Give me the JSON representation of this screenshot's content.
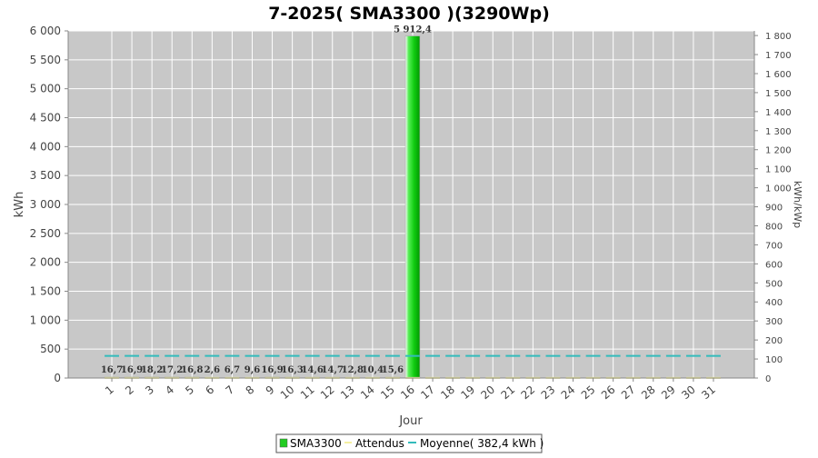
{
  "chart_data": {
    "type": "bar",
    "title": "7-2025( SMA3300 )(3290Wp)",
    "xlabel": "Jour",
    "ylabel": "kWh",
    "y2label": "kWh/kWp",
    "ylim": [
      0,
      6000
    ],
    "y2lim": [
      0,
      1824.4
    ],
    "yticks": [
      0,
      500,
      1000,
      1500,
      2000,
      2500,
      3000,
      3500,
      4000,
      4500,
      5000,
      5500,
      6000
    ],
    "ytick_labels": [
      "0",
      "500",
      "1 000",
      "1 500",
      "2 000",
      "2 500",
      "3 000",
      "3 500",
      "4 000",
      "4 500",
      "5 000",
      "5 500",
      "6 000"
    ],
    "y2ticks": [
      0,
      100,
      200,
      300,
      400,
      500,
      600,
      700,
      800,
      900,
      1000,
      1100,
      1200,
      1300,
      1400,
      1500,
      1600,
      1700,
      1800
    ],
    "y2tick_labels": [
      "0",
      "100",
      "200",
      "300",
      "400",
      "500",
      "600",
      "700",
      "800",
      "900",
      "1 000",
      "1 100",
      "1 200",
      "1 300",
      "1 400",
      "1 500",
      "1 600",
      "1 700",
      "1 800"
    ],
    "categories": [
      "1",
      "2",
      "3",
      "4",
      "5",
      "6",
      "7",
      "8",
      "9",
      "10",
      "11",
      "12",
      "13",
      "14",
      "15",
      "16",
      "17",
      "18",
      "19",
      "20",
      "21",
      "22",
      "23",
      "24",
      "25",
      "26",
      "27",
      "28",
      "29",
      "30",
      "31"
    ],
    "grid": true,
    "legend_position": "bottom",
    "series": [
      {
        "name": "SMA3300",
        "type": "bar",
        "color": "#22cc22",
        "values": [
          16.7,
          16.9,
          18.2,
          17.2,
          16.8,
          2.6,
          6.7,
          9.6,
          16.9,
          16.3,
          14.6,
          14.7,
          12.8,
          10.4,
          15.6,
          5912.4,
          null,
          null,
          null,
          null,
          null,
          null,
          null,
          null,
          null,
          null,
          null,
          null,
          null,
          null,
          null
        ],
        "labels": [
          "16,7",
          "16,9",
          "18,2",
          "17,2",
          "16,8",
          "2,6",
          "6,7",
          "9,6",
          "16,9",
          "16,3",
          "14,6",
          "14,7",
          "12,8",
          "10,4",
          "15,6",
          "5 912,4",
          "",
          "",
          "",
          "",
          "",
          "",
          "",
          "",
          "",
          "",
          "",
          "",
          "",
          "",
          ""
        ]
      },
      {
        "name": "Attendus",
        "type": "line",
        "color": "#f5f0a0",
        "values": [
          2,
          2,
          2,
          2,
          2,
          2,
          2,
          2,
          2,
          2,
          2,
          2,
          2,
          2,
          2,
          2,
          2,
          2,
          2,
          2,
          2,
          2,
          2,
          2,
          2,
          2,
          2,
          2,
          2,
          2,
          2
        ]
      },
      {
        "name": "Moyenne( 382,4 kWh )",
        "type": "line",
        "color": "#33bbbb",
        "values": [
          382.4,
          382.4,
          382.4,
          382.4,
          382.4,
          382.4,
          382.4,
          382.4,
          382.4,
          382.4,
          382.4,
          382.4,
          382.4,
          382.4,
          382.4,
          382.4,
          382.4,
          382.4,
          382.4,
          382.4,
          382.4,
          382.4,
          382.4,
          382.4,
          382.4,
          382.4,
          382.4,
          382.4,
          382.4,
          382.4,
          382.4
        ]
      }
    ]
  }
}
